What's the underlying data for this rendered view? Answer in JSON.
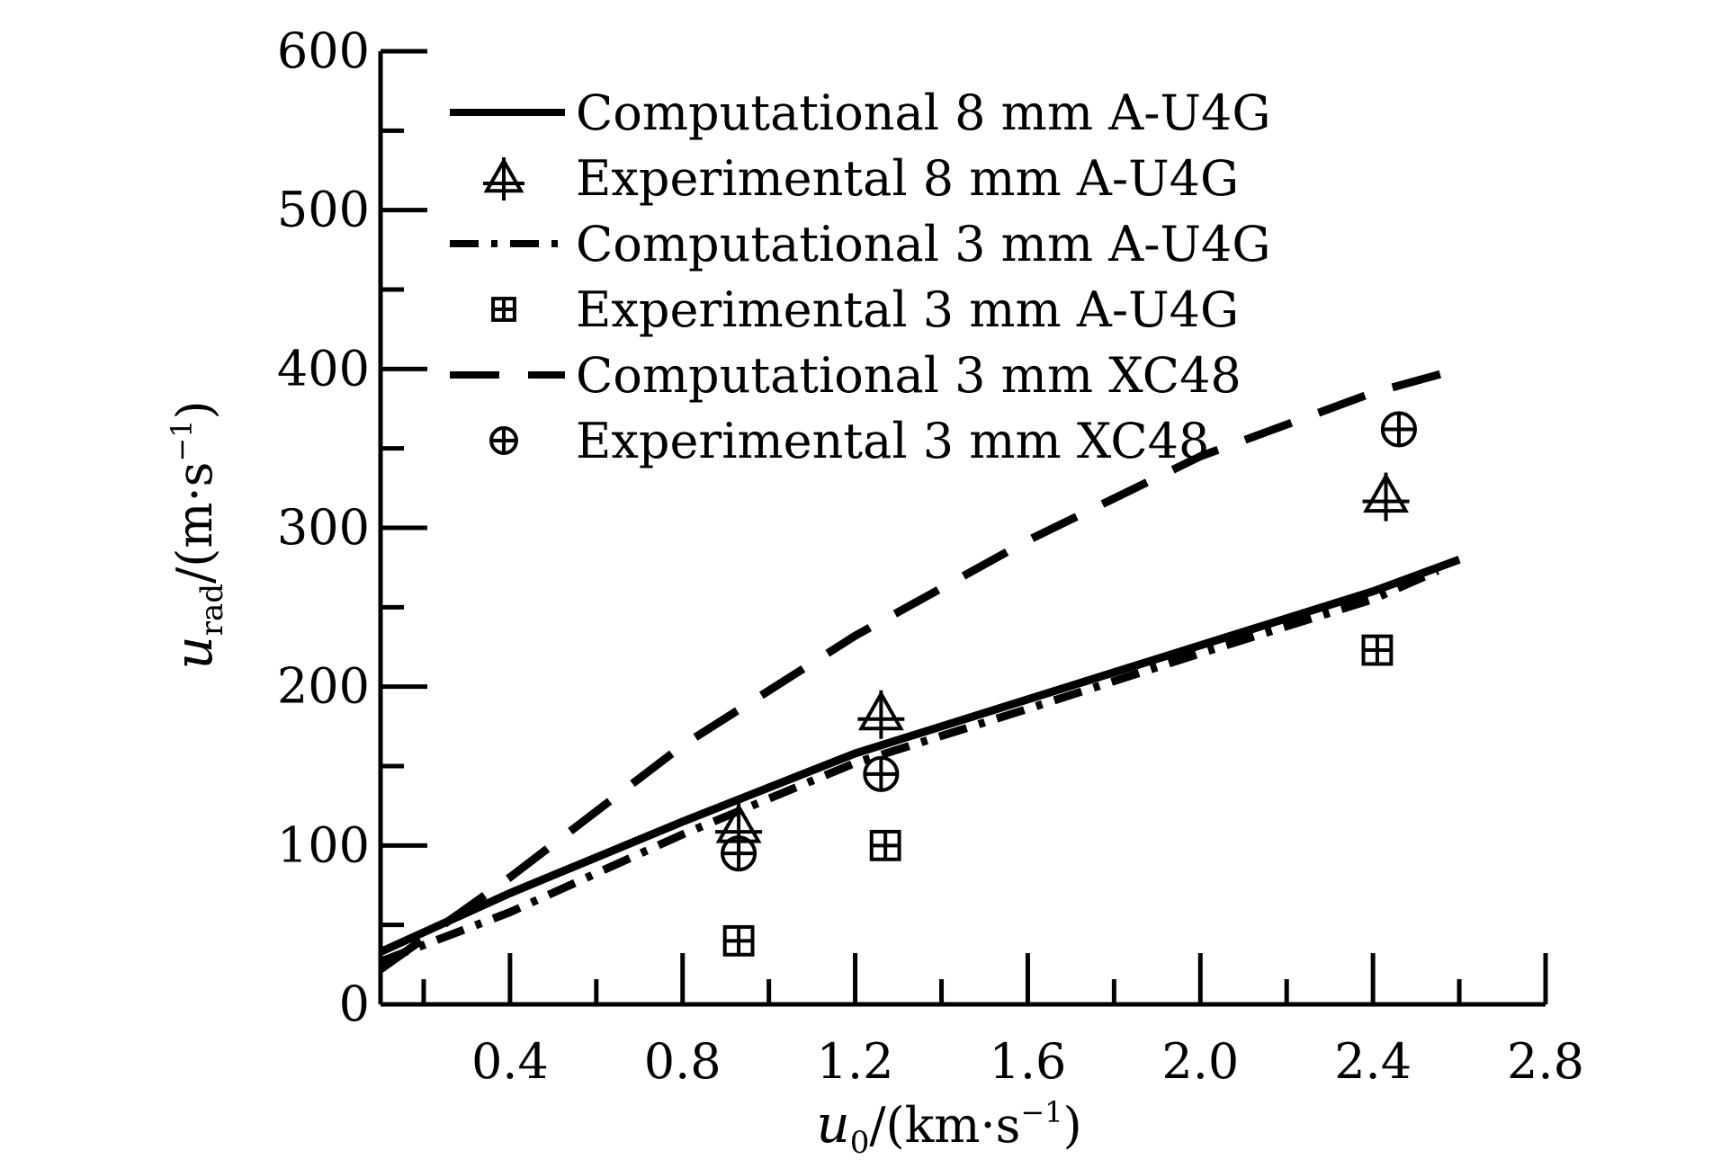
{
  "chart_data": {
    "type": "line",
    "title": "",
    "x_axis": {
      "min": 0.1,
      "max": 2.8,
      "ticks": [
        0.4,
        0.8,
        1.2,
        1.6,
        2.0,
        2.4,
        2.8
      ],
      "tick_labels": [
        "0.4",
        "0.8",
        "1.2",
        "1.6",
        "2.0",
        "2.4",
        "2.8"
      ],
      "minor_ticks": [
        0.2,
        0.6,
        1.0,
        1.4,
        1.8,
        2.2,
        2.6
      ],
      "label": {
        "symbol": "u",
        "sub": "0",
        "unit": "/(km·s",
        "sup": "−1",
        "close": ")"
      }
    },
    "y_axis": {
      "min": 0,
      "max": 600,
      "ticks": [
        0,
        100,
        200,
        300,
        400,
        500,
        600
      ],
      "tick_labels": [
        "0",
        "100",
        "200",
        "300",
        "400",
        "500",
        "600"
      ],
      "minor_ticks": [
        50,
        150,
        250,
        350,
        450,
        550
      ],
      "label": {
        "symbol": "u",
        "sub": "rad",
        "unit": "/(m·s",
        "sup": "−1",
        "close": ")"
      }
    },
    "grid": false,
    "legend_position": "top-left",
    "series": [
      {
        "name": "Computational 8 mm A-U4G",
        "kind": "line",
        "style": "solid",
        "color": "#000000",
        "x": [
          0.1,
          0.4,
          0.8,
          1.2,
          1.6,
          2.0,
          2.4,
          2.6
        ],
        "y": [
          33,
          70,
          115,
          158,
          192,
          226,
          260,
          280
        ]
      },
      {
        "name": "Experimental 8 mm A-U4G",
        "kind": "marker",
        "marker": "triangle-cross",
        "color": "#000000",
        "x": [
          0.93,
          1.26,
          2.43
        ],
        "y": [
          112,
          183,
          320
        ]
      },
      {
        "name": "Computational 3 mm A-U4G",
        "kind": "line",
        "style": "dashdot",
        "color": "#000000",
        "x": [
          0.1,
          0.4,
          0.8,
          1.2,
          1.6,
          2.0,
          2.4,
          2.55
        ],
        "y": [
          27,
          58,
          107,
          152,
          186,
          221,
          255,
          273
        ]
      },
      {
        "name": "Experimental 3 mm A-U4G",
        "kind": "marker",
        "marker": "square-cross",
        "color": "#000000",
        "x": [
          0.93,
          1.27,
          2.41
        ],
        "y": [
          40,
          100,
          223
        ]
      },
      {
        "name": "Computational 3 mm XC48",
        "kind": "line",
        "style": "dashed",
        "color": "#000000",
        "x": [
          0.1,
          0.4,
          0.8,
          1.2,
          1.6,
          2.0,
          2.4,
          2.6
        ],
        "y": [
          22,
          80,
          163,
          232,
          292,
          345,
          385,
          400
        ]
      },
      {
        "name": "Experimental 3 mm XC48",
        "kind": "marker",
        "marker": "circle-cross",
        "color": "#000000",
        "x": [
          0.93,
          1.26,
          2.46
        ],
        "y": [
          95,
          145,
          362
        ]
      }
    ]
  }
}
